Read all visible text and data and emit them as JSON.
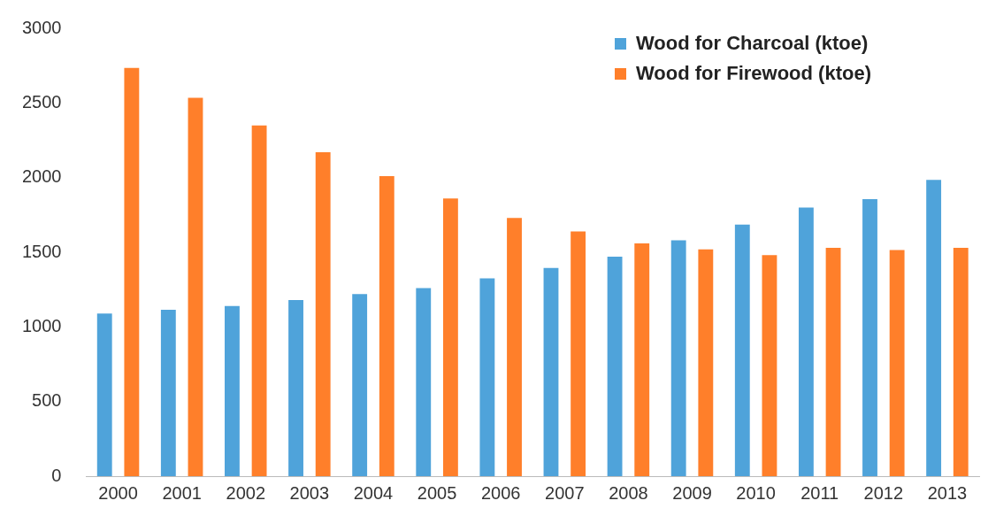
{
  "chart_data": {
    "type": "bar",
    "categories": [
      "2000",
      "2001",
      "2002",
      "2003",
      "2004",
      "2005",
      "2006",
      "2007",
      "2008",
      "2009",
      "2010",
      "2011",
      "2012",
      "2013"
    ],
    "series": [
      {
        "name": "Wood for Charcoal (ktoe)",
        "color": "#4fa3da",
        "values": [
          1090,
          1115,
          1140,
          1180,
          1220,
          1260,
          1325,
          1395,
          1470,
          1580,
          1685,
          1800,
          1855,
          1985
        ]
      },
      {
        "name": "Wood for Firewood (ktoe)",
        "color": "#ff7f2a",
        "values": [
          2735,
          2535,
          2350,
          2170,
          2010,
          1860,
          1730,
          1640,
          1560,
          1520,
          1480,
          1530,
          1515,
          1530
        ]
      }
    ],
    "ylim": [
      0,
      3000
    ],
    "yticks": [
      0,
      500,
      1000,
      1500,
      2000,
      2500,
      3000
    ],
    "grid": false,
    "legend": "top right"
  }
}
